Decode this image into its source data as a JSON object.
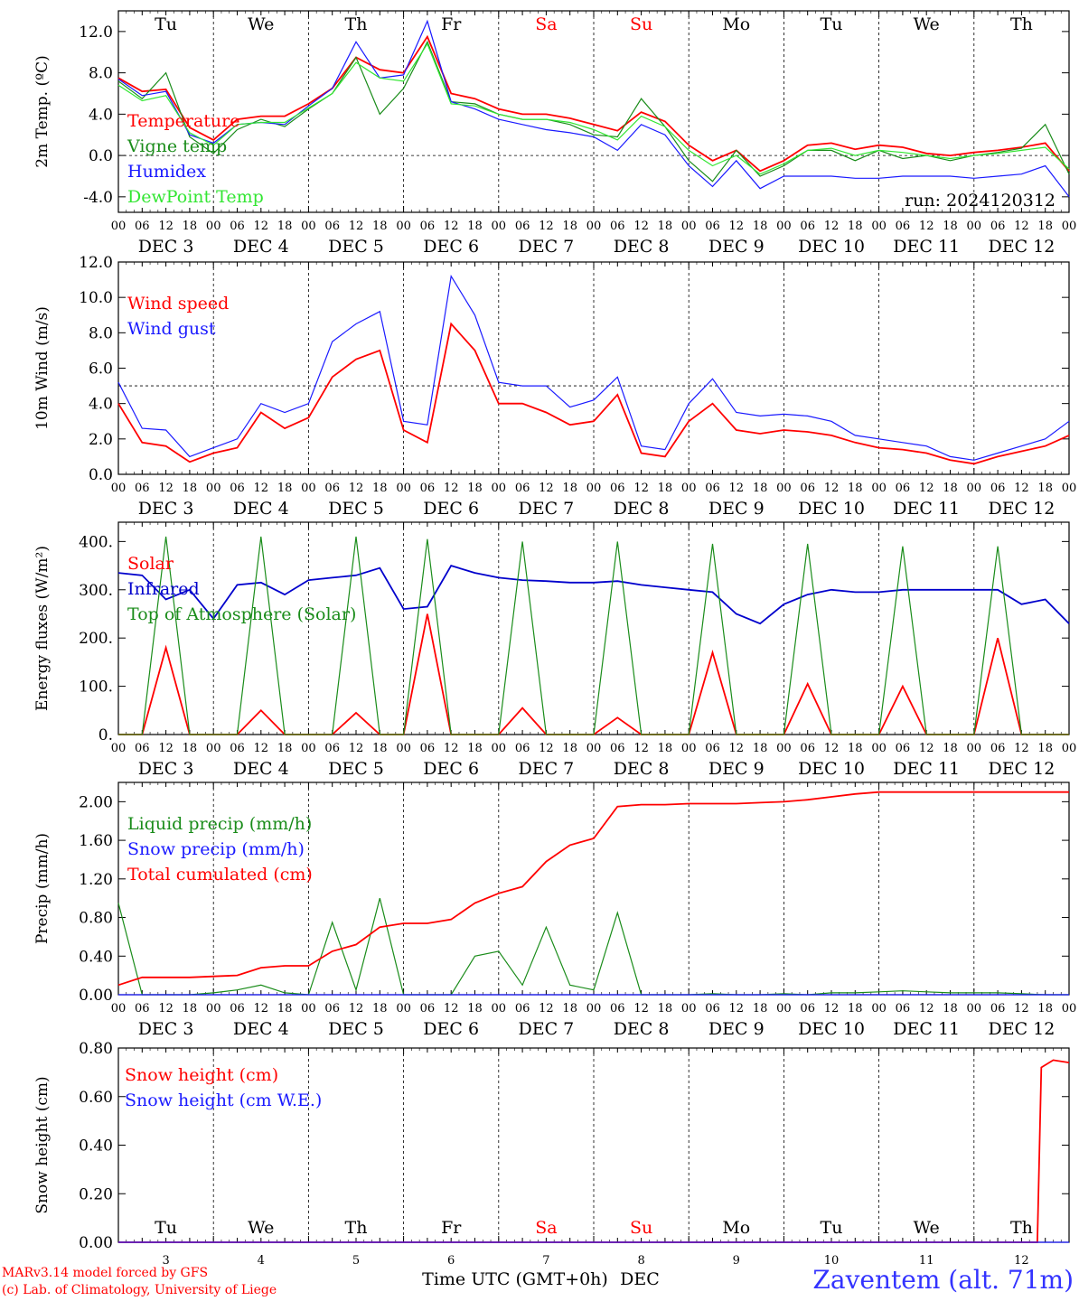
{
  "days": [
    "3",
    "4",
    "5",
    "6",
    "7",
    "8",
    "9",
    "10",
    "11",
    "12"
  ],
  "month": "DEC",
  "weekdays": [
    {
      "label": "Tu",
      "color": "#000000"
    },
    {
      "label": "We",
      "color": "#000000"
    },
    {
      "label": "Th",
      "color": "#000000"
    },
    {
      "label": "Fr",
      "color": "#000000"
    },
    {
      "label": "Sa",
      "color": "#ff0000"
    },
    {
      "label": "Su",
      "color": "#ff0000"
    },
    {
      "label": "Mo",
      "color": "#000000"
    },
    {
      "label": "Tu",
      "color": "#000000"
    },
    {
      "label": "We",
      "color": "#000000"
    },
    {
      "label": "Th",
      "color": "#000000"
    }
  ],
  "hour_ticks": [
    "00",
    "06",
    "12",
    "18"
  ],
  "run_label": "run: 2024120312",
  "xlabel": "Time UTC (GMT+0h)",
  "xlabel_month": "DEC",
  "credit_line1": "MARv3.14 model forced by GFS",
  "credit_line2": "(c) Lab. of Climatology, University of Liege",
  "station": "Zaventem (alt. 71m)",
  "colors": {
    "red": "#ff0000",
    "green": "#1a8c1a",
    "blue": "#1a1aff",
    "lightgreen": "#33e633",
    "navy": "#0000cc"
  },
  "chart_data": [
    {
      "type": "line",
      "ylabel": "2m Temp. (ºC)",
      "ylim": [
        -5.5,
        14
      ],
      "yticks": [
        -4,
        0,
        4,
        8,
        12
      ],
      "ytick_labels": [
        "-4.0",
        "0.0",
        "4.0",
        "8.0",
        "12.0"
      ],
      "ref_line": 0,
      "x": [
        0,
        6,
        12,
        18,
        24,
        30,
        36,
        42,
        48,
        54,
        60,
        66,
        72,
        78,
        84,
        90,
        96,
        102,
        108,
        114,
        120,
        126,
        132,
        138,
        144,
        150,
        156,
        162,
        168,
        174,
        180,
        186,
        192,
        198,
        204,
        210,
        216,
        222,
        228,
        234,
        240
      ],
      "series": [
        {
          "name": "Temperature",
          "color": "red",
          "values": [
            7.5,
            6.2,
            6.4,
            2.7,
            1.5,
            3.5,
            3.8,
            3.8,
            5.0,
            6.5,
            9.5,
            8.3,
            8.0,
            11.5,
            6.0,
            5.5,
            4.5,
            4.0,
            4.0,
            3.6,
            3.0,
            2.4,
            4.2,
            3.3,
            1.0,
            -0.5,
            0.5,
            -1.5,
            -0.5,
            1.0,
            1.2,
            0.6,
            1.0,
            0.8,
            0.2,
            0.0,
            0.3,
            0.5,
            0.8,
            1.2,
            -1.5
          ]
        },
        {
          "name": "Vigne temp",
          "color": "green",
          "values": [
            7.2,
            5.5,
            8.0,
            1.8,
            0.2,
            2.5,
            3.5,
            2.8,
            4.5,
            6.0,
            9.5,
            4.0,
            6.5,
            11.0,
            5.2,
            5.0,
            4.0,
            3.5,
            3.5,
            3.0,
            2.0,
            1.8,
            5.5,
            2.8,
            -0.5,
            -2.5,
            0.5,
            -2.0,
            -1.0,
            0.5,
            0.5,
            -0.5,
            0.5,
            -0.3,
            0.0,
            -0.5,
            0.0,
            0.3,
            0.7,
            3.0,
            -1.8
          ]
        },
        {
          "name": "Humidex",
          "color": "blue",
          "values": [
            7.4,
            5.8,
            6.2,
            2.0,
            1.2,
            3.0,
            3.2,
            3.0,
            4.8,
            6.5,
            11.0,
            7.5,
            7.8,
            13.0,
            5.2,
            4.5,
            3.5,
            3.0,
            2.5,
            2.2,
            1.8,
            0.5,
            3.0,
            2.0,
            -1.0,
            -3.0,
            -0.5,
            -3.2,
            -2.0,
            -2.0,
            -2.0,
            -2.2,
            -2.2,
            -2.0,
            -2.0,
            -2.0,
            -2.2,
            -2.0,
            -1.8,
            -1.0,
            -4.0
          ]
        },
        {
          "name": "DewPoint Temp",
          "color": "lightgreen",
          "values": [
            6.8,
            5.3,
            5.8,
            2.2,
            1.0,
            3.0,
            3.2,
            3.2,
            4.6,
            6.0,
            9.0,
            7.5,
            7.2,
            10.8,
            5.0,
            4.8,
            4.0,
            3.5,
            3.5,
            3.2,
            2.5,
            1.5,
            3.8,
            2.8,
            0.5,
            -1.0,
            0.0,
            -1.8,
            -0.8,
            0.5,
            0.7,
            0.0,
            0.5,
            0.3,
            0.0,
            -0.3,
            0.0,
            0.2,
            0.5,
            0.8,
            -1.3
          ]
        }
      ]
    },
    {
      "type": "line",
      "ylabel": "10m Wind (m/s)",
      "ylim": [
        0,
        12
      ],
      "yticks": [
        0,
        2,
        4,
        6,
        8,
        10,
        12
      ],
      "ytick_labels": [
        "0.0",
        "2.0",
        "4.0",
        "6.0",
        "8.0",
        "10.0",
        "12.0"
      ],
      "ref_line": 5,
      "x": [
        0,
        6,
        12,
        18,
        24,
        30,
        36,
        42,
        48,
        54,
        60,
        66,
        72,
        78,
        84,
        90,
        96,
        102,
        108,
        114,
        120,
        126,
        132,
        138,
        144,
        150,
        156,
        162,
        168,
        174,
        180,
        186,
        192,
        198,
        204,
        210,
        216,
        222,
        228,
        234,
        240
      ],
      "series": [
        {
          "name": "Wind speed",
          "color": "red",
          "values": [
            4.0,
            1.8,
            1.6,
            0.7,
            1.2,
            1.5,
            3.5,
            2.6,
            3.2,
            5.5,
            6.5,
            7.0,
            2.5,
            1.8,
            8.5,
            7.0,
            4.0,
            4.0,
            3.5,
            2.8,
            3.0,
            4.5,
            1.2,
            1.0,
            3.0,
            4.0,
            2.5,
            2.3,
            2.5,
            2.4,
            2.2,
            1.8,
            1.5,
            1.4,
            1.2,
            0.8,
            0.6,
            1.0,
            1.3,
            1.6,
            2.2
          ]
        },
        {
          "name": "Wind gust",
          "color": "blue",
          "values": [
            5.2,
            2.6,
            2.5,
            1.0,
            1.5,
            2.0,
            4.0,
            3.5,
            4.0,
            7.5,
            8.5,
            9.2,
            3.0,
            2.8,
            11.2,
            9.0,
            5.2,
            5.0,
            5.0,
            3.8,
            4.2,
            5.5,
            1.6,
            1.4,
            4.0,
            5.4,
            3.5,
            3.3,
            3.4,
            3.3,
            3.0,
            2.2,
            2.0,
            1.8,
            1.6,
            1.0,
            0.8,
            1.2,
            1.6,
            2.0,
            3.0
          ]
        }
      ]
    },
    {
      "type": "line",
      "ylabel": "Energy fluxes (W/m²)",
      "ylim": [
        0,
        440
      ],
      "yticks": [
        0,
        100,
        200,
        300,
        400
      ],
      "ytick_labels": [
        "0.",
        "100.",
        "200.",
        "300.",
        "400."
      ],
      "x": [
        0,
        6,
        12,
        18,
        24,
        30,
        36,
        42,
        48,
        54,
        60,
        66,
        72,
        78,
        84,
        90,
        96,
        102,
        108,
        114,
        120,
        126,
        132,
        138,
        144,
        150,
        156,
        162,
        168,
        174,
        180,
        186,
        192,
        198,
        204,
        210,
        216,
        222,
        228,
        234,
        240
      ],
      "series": [
        {
          "name": "Solar",
          "color": "red",
          "values": [
            0,
            0,
            180,
            0,
            0,
            0,
            50,
            0,
            0,
            0,
            45,
            0,
            0,
            250,
            0,
            0,
            0,
            55,
            0,
            0,
            0,
            35,
            0,
            0,
            0,
            170,
            0,
            0,
            0,
            105,
            0,
            0,
            0,
            100,
            0,
            0,
            0,
            200,
            0,
            0,
            0
          ]
        },
        {
          "name": "Infrared",
          "color": "navy",
          "values": [
            335,
            330,
            280,
            300,
            240,
            310,
            315,
            290,
            320,
            325,
            330,
            345,
            260,
            265,
            350,
            335,
            325,
            320,
            318,
            315,
            315,
            318,
            310,
            305,
            300,
            295,
            250,
            230,
            270,
            290,
            300,
            295,
            295,
            300,
            300,
            300,
            300,
            300,
            270,
            280,
            230
          ]
        },
        {
          "name": "Top of Atmosphere (Solar)",
          "color": "green",
          "values": [
            0,
            0,
            410,
            0,
            0,
            0,
            410,
            0,
            0,
            0,
            410,
            0,
            0,
            405,
            0,
            0,
            0,
            400,
            0,
            0,
            0,
            400,
            0,
            0,
            0,
            395,
            0,
            0,
            0,
            395,
            0,
            0,
            0,
            390,
            0,
            0,
            0,
            390,
            0,
            0,
            0
          ]
        }
      ]
    },
    {
      "type": "line",
      "ylabel": "Precip (mm/h)",
      "ylim": [
        0,
        2.2
      ],
      "yticks": [
        0,
        0.4,
        0.8,
        1.2,
        1.6,
        2.0
      ],
      "ytick_labels": [
        "0.00",
        "0.40",
        "0.80",
        "1.20",
        "1.60",
        "2.00"
      ],
      "x": [
        0,
        6,
        12,
        18,
        24,
        30,
        36,
        42,
        48,
        54,
        60,
        66,
        72,
        78,
        84,
        90,
        96,
        102,
        108,
        114,
        120,
        126,
        132,
        138,
        144,
        150,
        156,
        162,
        168,
        174,
        180,
        186,
        192,
        198,
        204,
        210,
        216,
        222,
        228,
        234,
        240
      ],
      "series": [
        {
          "name": "Liquid precip (mm/h)",
          "color": "green",
          "values": [
            0.95,
            0.0,
            0.0,
            0.0,
            0.02,
            0.05,
            0.1,
            0.02,
            0.0,
            0.75,
            0.05,
            1.0,
            0.0,
            0.0,
            0.0,
            0.4,
            0.45,
            0.1,
            0.7,
            0.1,
            0.05,
            0.85,
            0.0,
            0.0,
            0.0,
            0.01,
            0.0,
            0.0,
            0.01,
            0.0,
            0.02,
            0.02,
            0.03,
            0.04,
            0.03,
            0.02,
            0.02,
            0.02,
            0.01,
            0.0,
            0.0
          ]
        },
        {
          "name": "Snow precip (mm/h)",
          "color": "blue",
          "values": [
            0,
            0,
            0,
            0,
            0,
            0,
            0,
            0,
            0,
            0,
            0,
            0,
            0,
            0,
            0,
            0,
            0,
            0,
            0,
            0,
            0,
            0,
            0,
            0,
            0,
            0,
            0,
            0,
            0,
            0,
            0,
            0,
            0,
            0,
            0,
            0,
            0,
            0,
            0,
            0,
            0
          ]
        },
        {
          "name": "Total cumulated (cm)",
          "color": "red",
          "values": [
            0.1,
            0.18,
            0.18,
            0.18,
            0.19,
            0.2,
            0.28,
            0.3,
            0.3,
            0.45,
            0.52,
            0.7,
            0.74,
            0.74,
            0.78,
            0.95,
            1.05,
            1.12,
            1.38,
            1.55,
            1.62,
            1.95,
            1.97,
            1.97,
            1.98,
            1.98,
            1.98,
            1.99,
            2.0,
            2.02,
            2.05,
            2.08,
            2.1,
            2.1,
            2.1,
            2.1,
            2.1,
            2.1,
            2.1,
            2.1,
            2.1
          ]
        }
      ]
    },
    {
      "type": "line",
      "ylabel": "Snow height (cm)",
      "ylim": [
        0,
        0.8
      ],
      "yticks": [
        0,
        0.2,
        0.4,
        0.6,
        0.8
      ],
      "ytick_labels": [
        "0.00",
        "0.20",
        "0.40",
        "0.60",
        "0.80"
      ],
      "x": [
        0,
        24,
        48,
        72,
        96,
        120,
        144,
        168,
        192,
        216,
        232,
        233,
        236,
        240
      ],
      "series": [
        {
          "name": "Snow height (cm)",
          "color": "red",
          "values": [
            0,
            0,
            0,
            0,
            0,
            0,
            0,
            0,
            0,
            0,
            0,
            0.72,
            0.75,
            0.74
          ]
        },
        {
          "name": "Snow height (cm W.E.)",
          "color": "blue",
          "values": [
            0,
            0,
            0,
            0,
            0,
            0,
            0,
            0,
            0,
            0,
            0,
            0,
            0,
            0
          ]
        }
      ]
    }
  ]
}
